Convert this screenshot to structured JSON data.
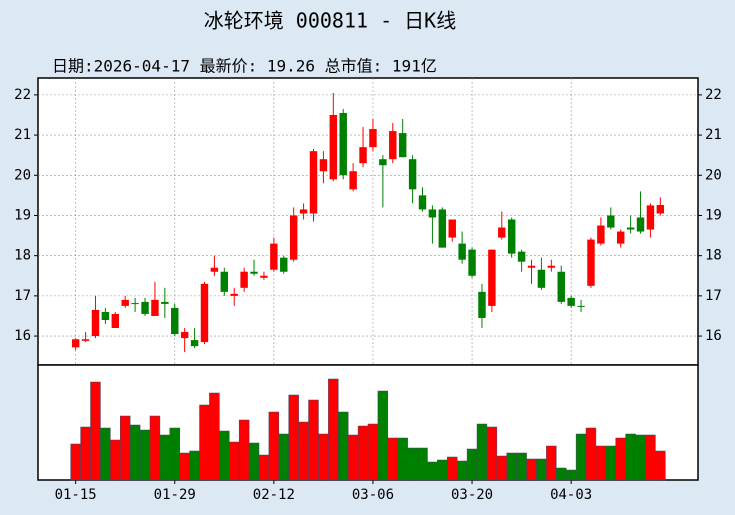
{
  "chart_data": {
    "type": "candlestick",
    "title": "冰轮环境 000811 - 日K线",
    "subtitle": "日期:2026-04-17 最新价: 19.26 总市值: 191亿",
    "up_color": "#ff0000",
    "down_color": "#008000",
    "grid": true,
    "xlim": [
      -3.8,
      62.8
    ],
    "xticks": [
      {
        "value": 0,
        "label": "01-15"
      },
      {
        "value": 10,
        "label": "01-29"
      },
      {
        "value": 20,
        "label": "02-12"
      },
      {
        "value": 30,
        "label": "03-06"
      },
      {
        "value": 40,
        "label": "03-20"
      },
      {
        "value": 50,
        "label": "04-03"
      }
    ],
    "ylim": [
      15.28,
      22.42
    ],
    "yticks": [
      16,
      17,
      18,
      19,
      20,
      21,
      22
    ],
    "open": [
      15.72,
      15.88,
      16.0,
      16.6,
      16.2,
      16.75,
      16.82,
      16.85,
      16.5,
      16.85,
      16.7,
      15.95,
      15.9,
      15.85,
      17.6,
      17.6,
      17.0,
      17.2,
      17.6,
      17.45,
      17.65,
      17.95,
      17.9,
      19.05,
      19.05,
      20.1,
      19.9,
      21.55,
      19.65,
      20.3,
      20.7,
      20.4,
      20.4,
      21.05,
      20.4,
      19.5,
      19.15,
      19.15,
      18.45,
      18.3,
      18.15,
      17.1,
      16.75,
      18.45,
      18.9,
      18.1,
      17.7,
      17.65,
      17.7,
      17.6,
      16.95,
      16.75,
      17.25,
      18.3,
      19.0,
      18.3,
      18.7,
      18.95,
      18.65,
      19.05
    ],
    "high": [
      15.95,
      16.1,
      17.0,
      16.7,
      16.6,
      17.0,
      16.95,
      16.95,
      17.35,
      17.2,
      16.8,
      16.2,
      16.2,
      17.35,
      18.0,
      17.7,
      17.2,
      17.7,
      17.9,
      17.6,
      18.45,
      18.0,
      19.2,
      19.3,
      20.65,
      20.6,
      22.05,
      21.65,
      20.3,
      21.2,
      21.4,
      20.5,
      21.3,
      21.4,
      20.5,
      19.7,
      19.25,
      19.2,
      18.9,
      18.6,
      18.2,
      17.3,
      18.15,
      19.1,
      18.95,
      18.15,
      17.9,
      17.95,
      17.9,
      17.75,
      17.0,
      16.9,
      18.45,
      18.95,
      19.2,
      18.65,
      19.0,
      19.6,
      19.3,
      19.45
    ],
    "low": [
      15.65,
      15.85,
      15.95,
      16.3,
      16.2,
      16.7,
      16.6,
      16.5,
      16.5,
      16.45,
      16.0,
      15.6,
      15.7,
      15.8,
      17.5,
      17.0,
      16.75,
      17.1,
      17.5,
      17.4,
      17.6,
      17.55,
      17.85,
      18.9,
      18.85,
      19.8,
      19.85,
      19.9,
      19.6,
      20.2,
      20.6,
      19.2,
      20.3,
      20.45,
      19.3,
      19.1,
      18.3,
      18.2,
      18.35,
      17.8,
      17.45,
      16.2,
      16.6,
      18.4,
      17.95,
      17.6,
      17.3,
      17.15,
      17.6,
      16.8,
      16.7,
      16.6,
      17.2,
      18.25,
      18.65,
      18.2,
      18.55,
      18.55,
      18.45,
      19.0
    ],
    "close": [
      15.92,
      15.92,
      16.65,
      16.4,
      16.55,
      16.9,
      16.8,
      16.55,
      16.9,
      16.8,
      16.05,
      16.1,
      15.75,
      17.3,
      17.7,
      17.1,
      17.05,
      17.6,
      17.55,
      17.5,
      18.3,
      17.6,
      19.0,
      19.15,
      20.6,
      20.4,
      21.5,
      20.0,
      20.1,
      20.7,
      21.15,
      20.25,
      21.1,
      20.45,
      19.65,
      19.15,
      18.95,
      18.2,
      18.9,
      17.9,
      17.5,
      16.45,
      18.15,
      18.7,
      18.05,
      17.85,
      17.75,
      17.2,
      17.75,
      16.85,
      16.75,
      16.73,
      18.4,
      18.75,
      18.7,
      18.6,
      18.65,
      18.6,
      19.25,
      19.26
    ],
    "vlim": [
      0,
      115
    ],
    "volume": [
      36,
      53,
      98,
      52,
      40,
      64,
      55,
      50,
      64,
      45,
      52,
      27,
      29,
      75,
      87,
      49,
      38,
      60,
      37,
      25,
      68,
      46,
      85,
      58,
      80,
      46,
      101,
      68,
      45,
      54,
      56,
      89,
      42,
      42,
      32,
      32,
      18,
      20,
      23,
      19,
      31,
      56,
      53,
      24,
      27,
      27,
      21,
      21,
      34,
      12,
      10,
      46,
      52,
      34,
      34,
      42,
      46,
      45,
      45,
      29
    ]
  }
}
